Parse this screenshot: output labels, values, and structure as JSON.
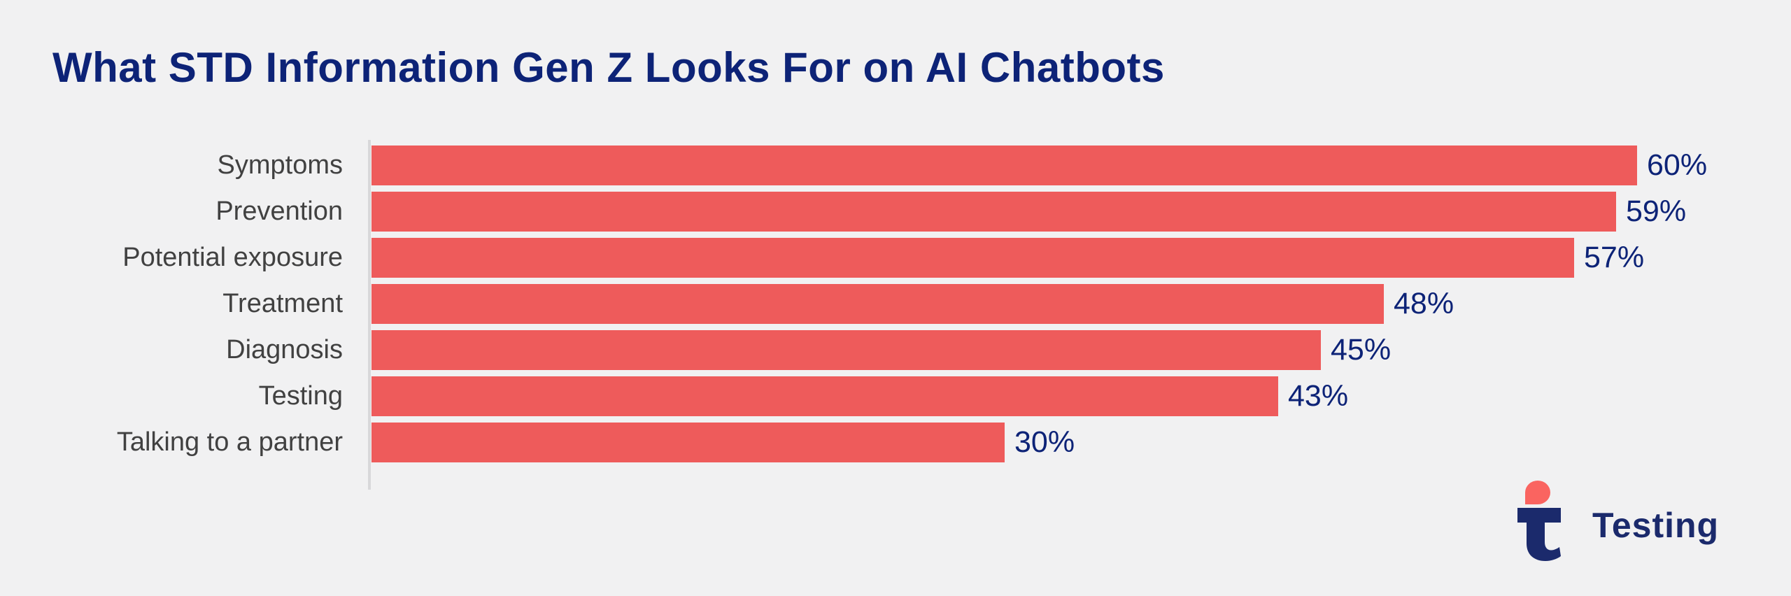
{
  "chart_data": {
    "type": "bar",
    "orientation": "horizontal",
    "title": "What STD Information Gen Z Looks For on AI Chatbots",
    "categories": [
      "Symptoms",
      "Prevention",
      "Potential exposure",
      "Treatment",
      "Diagnosis",
      "Testing",
      "Talking to a partner"
    ],
    "values": [
      60,
      59,
      57,
      48,
      45,
      43,
      30
    ],
    "value_labels": [
      "60%",
      "59%",
      "57%",
      "48%",
      "45%",
      "43%",
      "30%"
    ],
    "xlim": [
      0,
      60
    ],
    "grid": false,
    "legend": false,
    "bar_color": "#ee5b5b",
    "value_color": "#0d2377",
    "category_color": "#414141",
    "title_color": "#0d2377",
    "axis_line_color": "#d8d8da",
    "background_color": "#f1f1f2"
  },
  "branding": {
    "wordmark": "Testing",
    "icon": "t-with-teardrop-icon",
    "coral": "#fa6460",
    "navy": "#1b2a6c"
  }
}
